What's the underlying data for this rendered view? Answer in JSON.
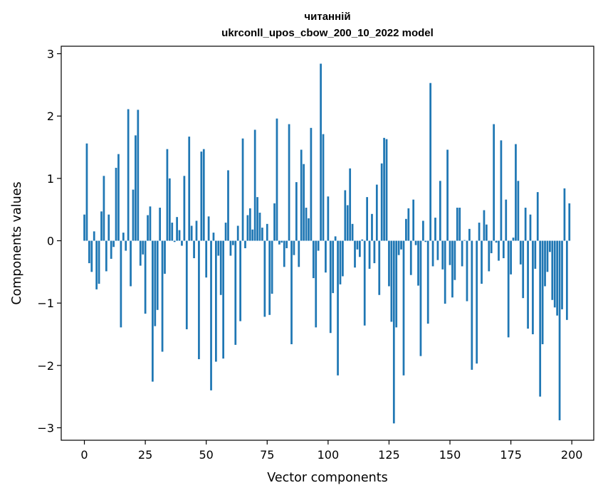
{
  "chart_data": {
    "type": "bar",
    "title_line1": "читанній",
    "title_line2": "ukrconll_upos_cbow_200_10_2022 model",
    "xlabel": "Vector components",
    "ylabel": "Components values",
    "xlim": [
      -9.5,
      209
    ],
    "ylim": [
      -3.2,
      3.12
    ],
    "xticks": [
      0,
      25,
      50,
      75,
      100,
      125,
      150,
      175,
      200
    ],
    "xtick_labels": [
      "0",
      "25",
      "50",
      "75",
      "100",
      "125",
      "150",
      "175",
      "200"
    ],
    "yticks": [
      -3,
      -2,
      -1,
      0,
      1,
      2,
      3
    ],
    "ytick_labels": [
      "−3",
      "−2",
      "−1",
      "0",
      "1",
      "2",
      "3"
    ],
    "grid": false,
    "bar_color": "#1f77b4",
    "x": [
      0,
      1,
      2,
      3,
      4,
      5,
      6,
      7,
      8,
      9,
      10,
      11,
      12,
      13,
      14,
      15,
      16,
      17,
      18,
      19,
      20,
      21,
      22,
      23,
      24,
      25,
      26,
      27,
      28,
      29,
      30,
      31,
      32,
      33,
      34,
      35,
      36,
      37,
      38,
      39,
      40,
      41,
      42,
      43,
      44,
      45,
      46,
      47,
      48,
      49,
      50,
      51,
      52,
      53,
      54,
      55,
      56,
      57,
      58,
      59,
      60,
      61,
      62,
      63,
      64,
      65,
      66,
      67,
      68,
      69,
      70,
      71,
      72,
      73,
      74,
      75,
      76,
      77,
      78,
      79,
      80,
      81,
      82,
      83,
      84,
      85,
      86,
      87,
      88,
      89,
      90,
      91,
      92,
      93,
      94,
      95,
      96,
      97,
      98,
      99,
      100,
      101,
      102,
      103,
      104,
      105,
      106,
      107,
      108,
      109,
      110,
      111,
      112,
      113,
      114,
      115,
      116,
      117,
      118,
      119,
      120,
      121,
      122,
      123,
      124,
      125,
      126,
      127,
      128,
      129,
      130,
      131,
      132,
      133,
      134,
      135,
      136,
      137,
      138,
      139,
      140,
      141,
      142,
      143,
      144,
      145,
      146,
      147,
      148,
      149,
      150,
      151,
      152,
      153,
      154,
      155,
      156,
      157,
      158,
      159,
      160,
      161,
      162,
      163,
      164,
      165,
      166,
      167,
      168,
      169,
      170,
      171,
      172,
      173,
      174,
      175,
      176,
      177,
      178,
      179,
      180,
      181,
      182,
      183,
      184,
      185,
      186,
      187,
      188,
      189,
      190,
      191,
      192,
      193,
      194,
      195,
      196,
      197,
      198,
      199
    ],
    "values": [
      0.42,
      1.56,
      -0.36,
      -0.5,
      0.15,
      -0.78,
      -0.69,
      0.47,
      1.04,
      -0.49,
      0.42,
      -0.29,
      -0.1,
      1.17,
      1.39,
      -1.39,
      0.13,
      -0.16,
      2.11,
      -0.73,
      0.82,
      1.69,
      2.1,
      -0.4,
      -0.22,
      -1.17,
      0.41,
      0.55,
      -2.26,
      -1.37,
      -1.11,
      0.53,
      -1.78,
      -0.53,
      1.47,
      1.0,
      0.29,
      -0.02,
      0.38,
      0.17,
      -0.08,
      1.04,
      -1.42,
      1.67,
      0.24,
      -0.28,
      0.32,
      -1.9,
      1.43,
      1.47,
      -0.59,
      0.39,
      -2.4,
      0.13,
      -1.94,
      -0.24,
      -0.87,
      -1.89,
      0.29,
      1.13,
      -0.24,
      -0.07,
      -1.67,
      0.24,
      -1.29,
      1.64,
      -0.12,
      0.41,
      0.52,
      0.18,
      1.78,
      0.7,
      0.45,
      0.21,
      -1.22,
      0.27,
      -1.19,
      -0.85,
      0.6,
      1.96,
      -0.06,
      -0.03,
      -0.42,
      -0.12,
      1.87,
      -1.66,
      -0.23,
      0.94,
      -0.42,
      1.46,
      1.23,
      0.53,
      0.36,
      1.81,
      -0.6,
      -1.39,
      -0.16,
      2.84,
      1.71,
      -0.51,
      0.71,
      -1.48,
      -0.84,
      0.07,
      -2.16,
      -0.7,
      -0.57,
      0.81,
      0.57,
      1.16,
      0.27,
      -0.43,
      -0.14,
      -0.26,
      0.02,
      -1.36,
      0.7,
      -0.45,
      0.43,
      -0.36,
      0.9,
      -0.87,
      1.24,
      1.65,
      1.63,
      -0.73,
      -1.3,
      -2.93,
      -1.39,
      -0.23,
      -0.14,
      -2.16,
      0.35,
      0.52,
      -0.55,
      0.66,
      -0.07,
      -0.72,
      -1.85,
      0.32,
      -0.02,
      -1.33,
      2.53,
      -0.41,
      0.37,
      -0.31,
      0.96,
      -0.46,
      -1.01,
      1.46,
      -0.39,
      -0.91,
      -0.63,
      0.53,
      0.53,
      -0.41,
      0.01,
      -0.97,
      0.19,
      -2.07,
      0.0,
      -1.97,
      0.29,
      -0.69,
      0.49,
      0.26,
      -0.49,
      -0.2,
      1.87,
      -0.03,
      -0.32,
      1.61,
      -0.28,
      0.66,
      -1.55,
      -0.54,
      0.05,
      1.55,
      0.96,
      -0.38,
      -0.92,
      0.53,
      -1.41,
      0.42,
      -1.5,
      -0.45,
      0.78,
      -2.5,
      -1.66,
      -0.73,
      -0.5,
      -0.18,
      -0.95,
      -1.07,
      -1.2,
      -2.88,
      -1.1,
      0.84,
      -1.27,
      0.6
    ]
  }
}
